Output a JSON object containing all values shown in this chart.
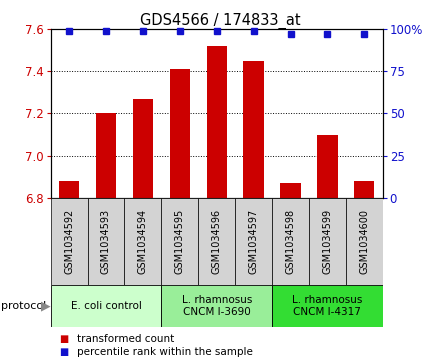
{
  "title": "GDS4566 / 174833_at",
  "samples": [
    "GSM1034592",
    "GSM1034593",
    "GSM1034594",
    "GSM1034595",
    "GSM1034596",
    "GSM1034597",
    "GSM1034598",
    "GSM1034599",
    "GSM1034600"
  ],
  "bar_values": [
    6.88,
    7.2,
    7.27,
    7.41,
    7.52,
    7.45,
    6.87,
    7.1,
    6.88
  ],
  "percentile_values": [
    99,
    99,
    99,
    99,
    99,
    99,
    97,
    97,
    97
  ],
  "ylim_left": [
    6.8,
    7.6
  ],
  "ylim_right": [
    0,
    100
  ],
  "yticks_left": [
    6.8,
    7.0,
    7.2,
    7.4,
    7.6
  ],
  "yticks_right": [
    0,
    25,
    50,
    75,
    100
  ],
  "bar_color": "#cc0000",
  "dot_color": "#1111cc",
  "groups": [
    {
      "label": "E. coli control",
      "start": 0,
      "end": 3,
      "color": "#ccffcc"
    },
    {
      "label": "L. rhamnosus\nCNCM I-3690",
      "start": 3,
      "end": 6,
      "color": "#99ee99"
    },
    {
      "label": "L. rhamnosus\nCNCM I-4317",
      "start": 6,
      "end": 9,
      "color": "#33dd33"
    }
  ],
  "legend_items": [
    {
      "label": "transformed count",
      "color": "#cc0000"
    },
    {
      "label": "percentile rank within the sample",
      "color": "#1111cc"
    }
  ],
  "background_color": "#ffffff",
  "sample_box_color": "#d3d3d3",
  "bar_width": 0.55,
  "dot_size": 5
}
